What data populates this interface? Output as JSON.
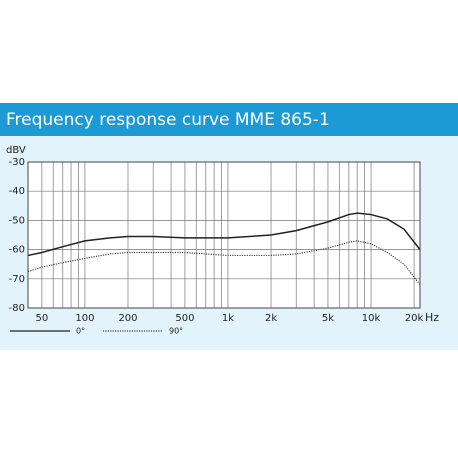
{
  "chart_data": {
    "type": "line",
    "title": "Frequency response curve MME 865-1",
    "ylabel": "dBV",
    "xlabel": "Hz",
    "xscale": "log",
    "grid": true,
    "x": [
      40,
      50,
      70,
      100,
      150,
      200,
      300,
      500,
      1000,
      2000,
      3000,
      5000,
      7000,
      8000,
      10000,
      13000,
      17000,
      22000
    ],
    "series": [
      {
        "name": "0°",
        "color": "#222222",
        "dash": "solid",
        "values": [
          -62,
          -61,
          -59,
          -57,
          -56,
          -55.5,
          -55.5,
          -56,
          -56,
          -55,
          -53.5,
          -50.5,
          -48,
          -47.5,
          -48,
          -49.5,
          -53,
          -60
        ]
      },
      {
        "name": "90°",
        "color": "#444444",
        "dash": "dotted",
        "values": [
          -67.5,
          -66,
          -64.5,
          -63,
          -61.5,
          -61,
          -61,
          -61,
          -62,
          -62,
          -61.5,
          -59.5,
          -57.5,
          -57,
          -58,
          -61,
          -65,
          -72
        ]
      }
    ],
    "xlim": [
      40,
      22000
    ],
    "xticks": [
      50,
      100,
      200,
      500,
      {
        "value": 1000,
        "label": "1k"
      },
      {
        "value": 2000,
        "label": "2k"
      },
      {
        "value": 5000,
        "label": "5k"
      },
      {
        "value": 10000,
        "label": "10k"
      },
      {
        "value": 20000,
        "label": "20k"
      }
    ],
    "xgrid": [
      40,
      50,
      60,
      70,
      80,
      90,
      100,
      200,
      300,
      400,
      500,
      600,
      700,
      800,
      900,
      1000,
      2000,
      3000,
      4000,
      5000,
      6000,
      7000,
      8000,
      9000,
      10000,
      20000
    ],
    "ylim": [
      -80,
      -30
    ],
    "yticks": [
      -80,
      -70,
      -60,
      -50,
      -40,
      -30
    ]
  }
}
